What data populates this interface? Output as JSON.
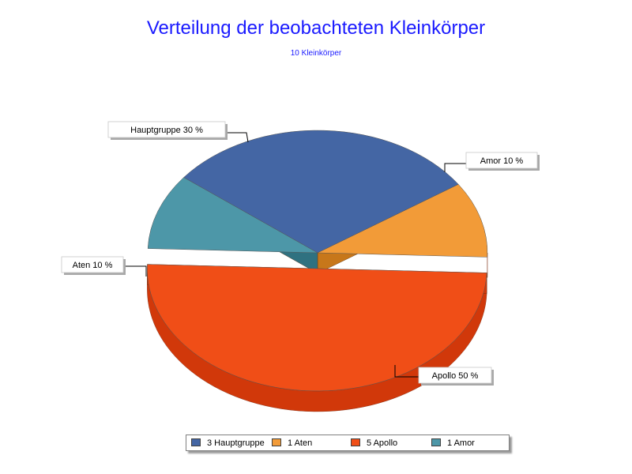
{
  "title": "Verteilung der beobachteten Kleinkörper",
  "subtitle": "10 Kleinkörper",
  "chart_data": {
    "type": "pie",
    "title": "Verteilung der beobachteten Kleinkörper",
    "subtitle": "10 Kleinkörper",
    "slices": [
      {
        "name": "Hauptgruppe",
        "count": 3,
        "percent": 30,
        "label": "Hauptgruppe 30 %",
        "legend": "3 Hauptgruppe",
        "color": "#4466a4",
        "side": "#2e4778"
      },
      {
        "name": "Aten",
        "count": 1,
        "percent": 10,
        "label": "Aten 10 %",
        "legend": "1 Aten",
        "color": "#f29b38",
        "side": "#c7771a"
      },
      {
        "name": "Apollo",
        "count": 5,
        "percent": 50,
        "label": "Apollo 50 %",
        "legend": "5 Apollo",
        "color": "#f04e17",
        "side": "#d1380a"
      },
      {
        "name": "Amor",
        "count": 1,
        "percent": 10,
        "label": "Amor 10 %",
        "legend": "1 Amor",
        "color": "#4d97a8",
        "side": "#2f7180"
      }
    ],
    "exploded": "Apollo",
    "legend_position": "bottom"
  }
}
